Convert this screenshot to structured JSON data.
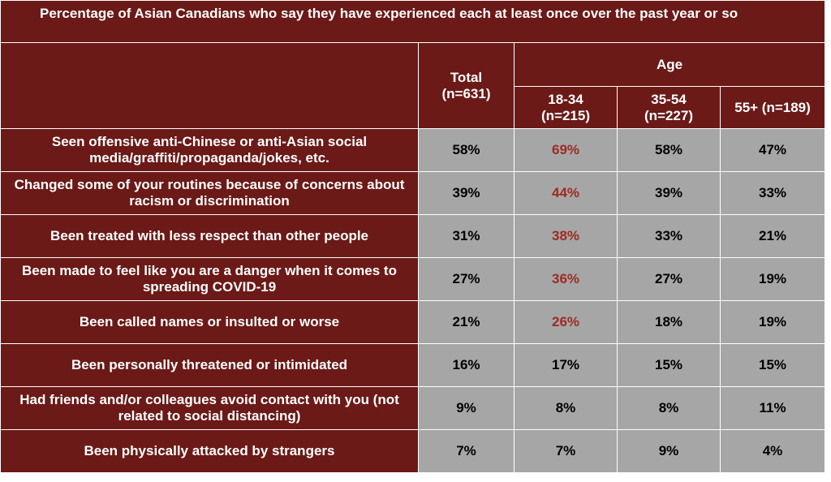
{
  "chart_data": {
    "type": "table",
    "title": "Percentage of Asian Canadians who say they have experienced each at least once over the past year or so",
    "header": {
      "total_label": "Total",
      "total_n": "(n=631)",
      "age_group_label": "Age",
      "columns": [
        {
          "label": "18-34",
          "n": "(n=215)"
        },
        {
          "label": "35-54",
          "n": "(n=227)"
        },
        {
          "label": "55+ (n=189)",
          "n": ""
        }
      ]
    },
    "rows": [
      {
        "label": "Seen offensive anti-Chinese or anti-Asian social media/graffiti/propaganda/jokes, etc.",
        "values": [
          "58%",
          "69%",
          "58%",
          "47%"
        ],
        "highlight": [
          false,
          true,
          false,
          false
        ]
      },
      {
        "label": "Changed some of your routines because of concerns about racism or discrimination",
        "values": [
          "39%",
          "44%",
          "39%",
          "33%"
        ],
        "highlight": [
          false,
          true,
          false,
          false
        ]
      },
      {
        "label": "Been treated with less respect than other people",
        "values": [
          "31%",
          "38%",
          "33%",
          "21%"
        ],
        "highlight": [
          false,
          true,
          false,
          false
        ]
      },
      {
        "label": "Been made to feel like you are a danger when it comes to spreading COVID-19",
        "values": [
          "27%",
          "36%",
          "27%",
          "19%"
        ],
        "highlight": [
          false,
          true,
          false,
          false
        ]
      },
      {
        "label": "Been called names or insulted or worse",
        "values": [
          "21%",
          "26%",
          "18%",
          "19%"
        ],
        "highlight": [
          false,
          true,
          false,
          false
        ]
      },
      {
        "label": "Been personally threatened or intimidated",
        "values": [
          "16%",
          "17%",
          "15%",
          "15%"
        ],
        "highlight": [
          false,
          false,
          false,
          false
        ]
      },
      {
        "label": "Had friends and/or colleagues avoid contact with you (not related to social distancing)",
        "values": [
          "9%",
          "8%",
          "8%",
          "11%"
        ],
        "highlight": [
          false,
          false,
          false,
          false
        ]
      },
      {
        "label": "Been physically attacked by strangers",
        "values": [
          "7%",
          "7%",
          "9%",
          "4%"
        ],
        "highlight": [
          false,
          false,
          false,
          false
        ]
      }
    ]
  },
  "colors": {
    "header_bg": "#6b1a17",
    "cell_bg": "#a6a6a6",
    "highlight_text": "#9c2b23"
  }
}
